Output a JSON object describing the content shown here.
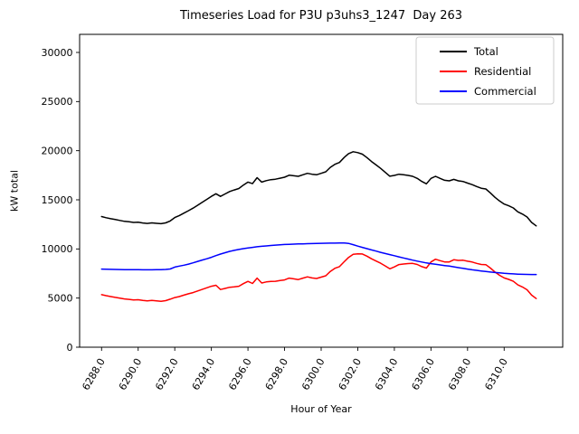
{
  "chart_data": {
    "type": "line",
    "title": "Timeseries Load for P3U p3uhs3_1247  Day 263",
    "xlabel": "Hour of Year",
    "ylabel": "kW total",
    "grid": false,
    "background_color": "#ffffff",
    "xlim": [
      6286.8,
      6313.2
    ],
    "ylim": [
      0,
      31840
    ],
    "xticks": {
      "values": [
        6288,
        6290,
        6292,
        6294,
        6296,
        6298,
        6300,
        6302,
        6304,
        6306,
        6308,
        6310
      ],
      "labels": [
        "6288.0",
        "6290.0",
        "6292.0",
        "6294.0",
        "6296.0",
        "6298.0",
        "6300.0",
        "6302.0",
        "6304.0",
        "6306.0",
        "6308.0",
        "6310.0"
      ],
      "rotation_deg": 60
    },
    "yticks": {
      "values": [
        0,
        5000,
        10000,
        15000,
        20000,
        25000,
        30000
      ],
      "labels": [
        "0",
        "5000",
        "10000",
        "15000",
        "20000",
        "25000",
        "30000"
      ]
    },
    "x_start": 6288.0,
    "x_step": 0.25,
    "x_count": 96,
    "legend": {
      "position": "upper right",
      "edge_color": "#cccccc",
      "entries": [
        "Total",
        "Residential",
        "Commercial"
      ]
    },
    "series": [
      {
        "name": "Total",
        "color": "#000000",
        "values": [
          13300,
          13180,
          13080,
          12990,
          12900,
          12810,
          12760,
          12700,
          12720,
          12640,
          12600,
          12650,
          12610,
          12570,
          12650,
          12850,
          13200,
          13400,
          13650,
          13900,
          14150,
          14450,
          14750,
          15050,
          15350,
          15620,
          15350,
          15600,
          15850,
          16000,
          16150,
          16500,
          16800,
          16650,
          17250,
          16800,
          16950,
          17050,
          17100,
          17200,
          17300,
          17500,
          17450,
          17390,
          17550,
          17700,
          17600,
          17550,
          17700,
          17850,
          18300,
          18620,
          18800,
          19300,
          19700,
          19900,
          19800,
          19650,
          19300,
          18900,
          18550,
          18200,
          17800,
          17400,
          17480,
          17600,
          17550,
          17480,
          17390,
          17180,
          16870,
          16630,
          17180,
          17390,
          17180,
          16990,
          16930,
          17080,
          16930,
          16870,
          16700,
          16550,
          16350,
          16180,
          16100,
          15700,
          15250,
          14880,
          14570,
          14390,
          14170,
          13780,
          13550,
          13250,
          12700,
          12350
        ]
      },
      {
        "name": "Residential",
        "color": "#ff0000",
        "values": [
          5350,
          5245,
          5155,
          5075,
          4995,
          4910,
          4865,
          4810,
          4835,
          4760,
          4720,
          4770,
          4725,
          4675,
          4735,
          4890,
          5050,
          5150,
          5300,
          5440,
          5560,
          5720,
          5880,
          6050,
          6200,
          6300,
          5870,
          5980,
          6100,
          6140,
          6200,
          6470,
          6700,
          6490,
          7030,
          6530,
          6640,
          6700,
          6710,
          6780,
          6850,
          7030,
          6960,
          6880,
          7030,
          7160,
          7050,
          6990,
          7130,
          7270,
          7710,
          8030,
          8200,
          8690,
          9140,
          9460,
          9510,
          9490,
          9270,
          9000,
          8770,
          8550,
          8270,
          7980,
          8170,
          8410,
          8470,
          8510,
          8530,
          8420,
          8200,
          8050,
          8680,
          8950,
          8810,
          8680,
          8680,
          8900,
          8830,
          8850,
          8750,
          8670,
          8530,
          8420,
          8400,
          8050,
          7650,
          7320,
          7050,
          6900,
          6710,
          6340,
          6130,
          5840,
          5300,
          4955
        ]
      },
      {
        "name": "Commercial",
        "color": "#0000ff",
        "values": [
          7950,
          7935,
          7925,
          7915,
          7905,
          7900,
          7895,
          7890,
          7885,
          7880,
          7880,
          7880,
          7885,
          7895,
          7915,
          7960,
          8150,
          8250,
          8350,
          8460,
          8590,
          8730,
          8870,
          9000,
          9150,
          9320,
          9480,
          9620,
          9750,
          9860,
          9950,
          10030,
          10100,
          10160,
          10220,
          10270,
          10310,
          10350,
          10390,
          10420,
          10450,
          10470,
          10490,
          10510,
          10520,
          10540,
          10550,
          10560,
          10570,
          10580,
          10590,
          10590,
          10600,
          10610,
          10560,
          10440,
          10290,
          10160,
          10030,
          9900,
          9780,
          9650,
          9530,
          9420,
          9310,
          9190,
          9080,
          8970,
          8860,
          8760,
          8670,
          8580,
          8500,
          8440,
          8370,
          8310,
          8250,
          8180,
          8100,
          8020,
          7950,
          7880,
          7820,
          7760,
          7700,
          7650,
          7600,
          7560,
          7520,
          7490,
          7460,
          7440,
          7420,
          7410,
          7400,
          7395
        ]
      }
    ]
  }
}
